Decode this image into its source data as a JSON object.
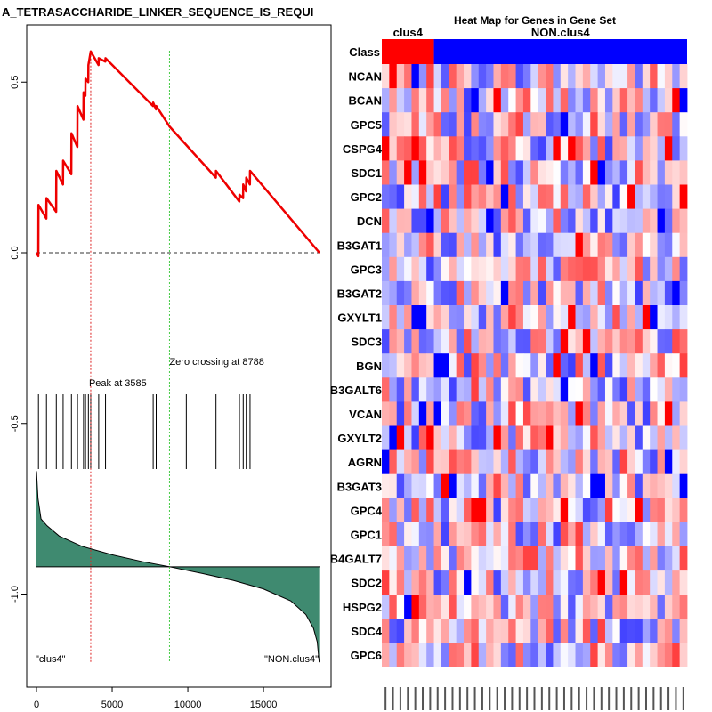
{
  "chart_data": [
    {
      "type": "line",
      "title": "A_TETRASACCHARIDE_LINKER_SEQUENCE_IS_REQUI",
      "xlabel": "",
      "ylabel": "",
      "xlim": [
        0,
        18700
      ],
      "ylim": [
        -1.25,
        0.62
      ],
      "x_ticks": [
        0,
        5000,
        10000,
        15000
      ],
      "x_tick_labels": [
        "0",
        "5000",
        "10000",
        "15000"
      ],
      "y_ticks": [
        0.5,
        0.0,
        -0.5,
        -1.0
      ],
      "y_tick_labels": [
        "0.5",
        "0.0",
        "-0.5",
        "-1.0"
      ],
      "series": [
        {
          "name": "enrichment-score",
          "color": "#ee0000",
          "x": [
            0,
            120,
            130,
            650,
            660,
            1300,
            1310,
            1750,
            1760,
            2300,
            2310,
            2700,
            2710,
            3100,
            3110,
            3230,
            3240,
            3420,
            3430,
            3585,
            4100,
            4110,
            4550,
            4560,
            7700,
            7710,
            7900,
            7910,
            8788,
            11850,
            11860,
            13400,
            13410,
            13650,
            13660,
            13850,
            13860,
            14100,
            14110,
            18700
          ],
          "y": [
            0.0,
            -0.01,
            0.14,
            0.1,
            0.16,
            0.12,
            0.24,
            0.2,
            0.27,
            0.23,
            0.35,
            0.31,
            0.43,
            0.39,
            0.47,
            0.46,
            0.51,
            0.5,
            0.55,
            0.59,
            0.55,
            0.57,
            0.56,
            0.57,
            0.43,
            0.44,
            0.42,
            0.43,
            0.37,
            0.22,
            0.24,
            0.15,
            0.17,
            0.16,
            0.2,
            0.18,
            0.22,
            0.2,
            0.24,
            0.0
          ]
        }
      ],
      "baseline": 0.0,
      "hits": [
        130,
        660,
        1310,
        1760,
        2310,
        2710,
        3110,
        3240,
        3430,
        3585,
        4110,
        4560,
        7710,
        7910,
        9900,
        11860,
        13410,
        13660,
        13860,
        14110
      ],
      "peak": {
        "x": 3585,
        "label": "Peak at 3585"
      },
      "zero_crossing": {
        "x": 8788,
        "label": "Zero crossing at 8788"
      },
      "ranked_metric": {
        "x": [
          0,
          100,
          300,
          700,
          1500,
          3000,
          5000,
          7000,
          8788,
          11000,
          13000,
          15000,
          16800,
          17800,
          18300,
          18550,
          18680
        ],
        "y": [
          -0.64,
          -0.72,
          -0.78,
          -0.8,
          -0.83,
          -0.86,
          -0.885,
          -0.905,
          -0.92,
          -0.94,
          -0.96,
          -0.985,
          -1.02,
          -1.06,
          -1.1,
          -1.14,
          -1.2
        ]
      },
      "end_labels": {
        "left": "\"clus4\"",
        "right": "\"NON.clus4\""
      }
    },
    {
      "type": "heatmap",
      "title": "Heat Map for Genes in Gene Set",
      "class_label": "Class",
      "class_groups": [
        {
          "name": "clus4",
          "count": 7,
          "color": "#ff0000"
        },
        {
          "name": "NON.clus4",
          "count": 34,
          "color": "#0000ff"
        }
      ],
      "rows": [
        "NCAN",
        "BCAN",
        "GPC5",
        "CSPG4",
        "SDC1",
        "GPC2",
        "DCN",
        "B3GAT1",
        "GPC3",
        "B3GAT2",
        "GXYLT1",
        "SDC3",
        "BGN",
        "B3GALT6",
        "VCAN",
        "GXYLT2",
        "AGRN",
        "B3GAT3",
        "GPC4",
        "GPC1",
        "B4GALT7",
        "SDC2",
        "HSPG2",
        "SDC4",
        "GPC6"
      ],
      "n_columns": 41,
      "value_range": [
        -1,
        1
      ],
      "seed": 7
    }
  ]
}
